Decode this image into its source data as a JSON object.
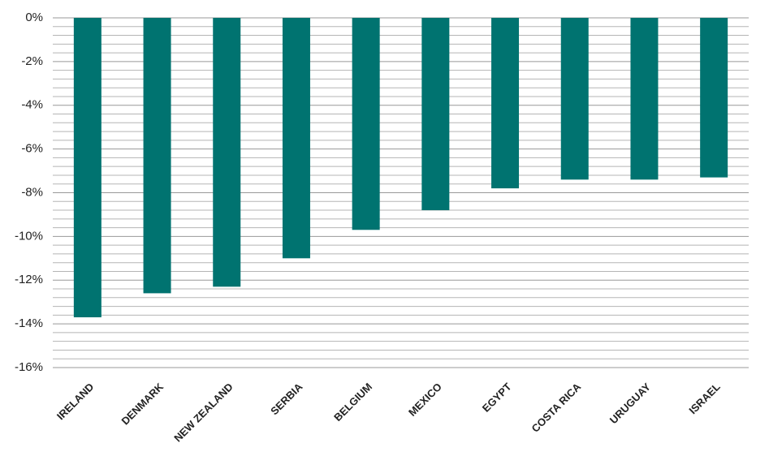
{
  "chart_data": {
    "type": "bar",
    "categories": [
      "IRELAND",
      "DENMARK",
      "NEW ZEALAND",
      "SERBIA",
      "BELGIUM",
      "MEXICO",
      "EGYPT",
      "COSTA RICA",
      "URUGUAY",
      "ISRAEL"
    ],
    "values": [
      -13.7,
      -12.6,
      -12.3,
      -11.0,
      -9.7,
      -8.8,
      -7.8,
      -7.4,
      -7.4,
      -7.3
    ],
    "color": "#007370",
    "ylim": [
      -16,
      0
    ],
    "yticks": [
      {
        "value": 0,
        "label": "0%"
      },
      {
        "value": -2,
        "label": "-2%"
      },
      {
        "value": -4,
        "label": "-4%"
      },
      {
        "value": -6,
        "label": "-6%"
      },
      {
        "value": -8,
        "label": "-8%"
      },
      {
        "value": -10,
        "label": "-10%"
      },
      {
        "value": -12,
        "label": "-12%"
      },
      {
        "value": -14,
        "label": "-14%"
      },
      {
        "value": -16,
        "label": "-16%"
      }
    ],
    "minor_yticks": [
      -0.4,
      -0.8,
      -1.2,
      -1.6,
      -2.4,
      -2.8,
      -3.2,
      -3.6,
      -4.4,
      -4.8,
      -5.2,
      -5.6,
      -6.4,
      -6.8,
      -7.2,
      -7.6,
      -8.4,
      -8.8,
      -9.2,
      -9.6,
      -10.4,
      -10.8,
      -11.2,
      -11.6,
      -12.4,
      -12.8,
      -13.2,
      -13.6,
      -14.4,
      -14.8,
      -15.2,
      -15.6
    ],
    "grid": true
  }
}
